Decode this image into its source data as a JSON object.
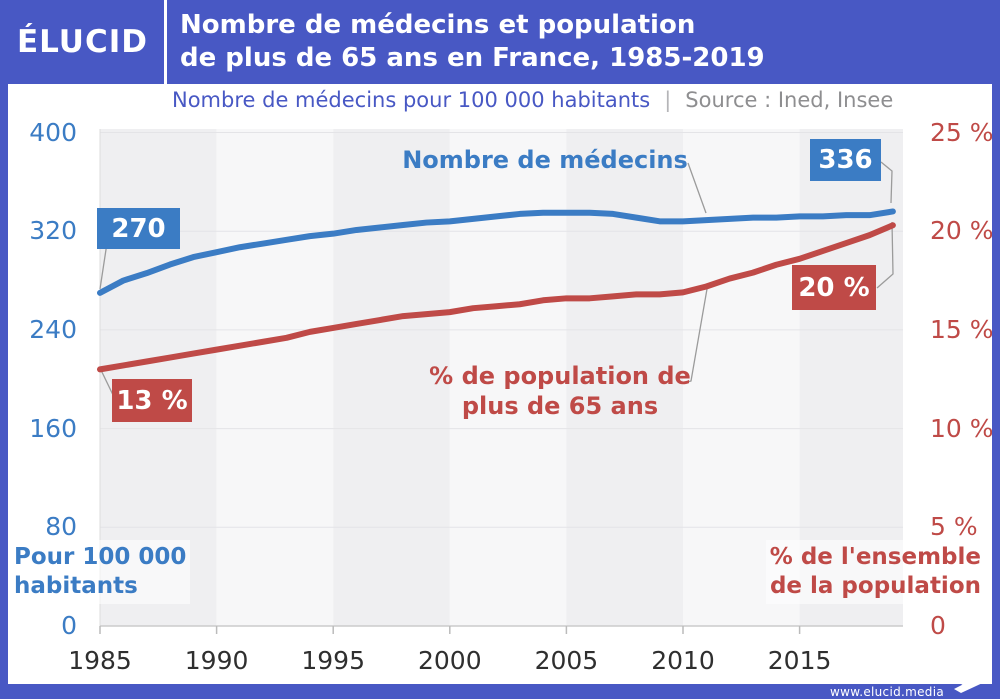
{
  "header": {
    "logo_text": "ÉLUCID",
    "title_line1": "Nombre de médecins et population",
    "title_line2": "de plus de 65 ans en France, 1985-2019"
  },
  "subtitle": {
    "measure_label": "Nombre de médecins pour 100 000 habitants",
    "separator": "|",
    "source_label": "Source : Ined, Insee"
  },
  "axis_captions": {
    "left_line1": "Pour 100 000",
    "left_line2": "habitants",
    "right_line1": "% de l'ensemble",
    "right_line2": "de la population"
  },
  "callouts": {
    "blue_start": "270",
    "blue_end": "336",
    "red_start": "13 %",
    "red_end": "20 %",
    "blue_series_label": "Nombre de médecins",
    "red_series_label_line1": "% de population de",
    "red_series_label_line2": "plus de 65 ans"
  },
  "footer": {
    "url_text": "www.elucid.media"
  },
  "colors": {
    "brand_blue": "#4858C4",
    "medecins_blue": "#3B7CC4",
    "population_red": "#BF4A47",
    "band_dark": "#EFEFF1",
    "band_light": "#F7F7F8",
    "gridline": "#E4E4E7",
    "axis_line": "#CCCCCC",
    "tick": "#BBBBBB",
    "connector": "#9B9B9B",
    "x_label": "#2F2F2F",
    "source_gray": "#8E8E90"
  },
  "chart_data": {
    "type": "line",
    "title": "Nombre de médecins et population de plus de 65 ans en France, 1985-2019",
    "subtitle": "Nombre de médecins pour 100 000 habitants",
    "source": "Source : Ined, Insee",
    "x": [
      1985,
      1986,
      1987,
      1988,
      1989,
      1990,
      1991,
      1992,
      1993,
      1994,
      1995,
      1996,
      1997,
      1998,
      1999,
      2000,
      2001,
      2002,
      2003,
      2004,
      2005,
      2006,
      2007,
      2008,
      2009,
      2010,
      2011,
      2012,
      2013,
      2014,
      2015,
      2016,
      2017,
      2018,
      2019
    ],
    "x_tick_years": [
      1985,
      1990,
      1995,
      2000,
      2005,
      2010,
      2015
    ],
    "x_tick_labels": [
      "1985",
      "1990",
      "1995",
      "2000",
      "2005",
      "2010",
      "2015"
    ],
    "left_axis": {
      "label": "Pour 100 000 habitants",
      "range": [
        0,
        400
      ],
      "tick_values": [
        0,
        80,
        160,
        240,
        320,
        400
      ],
      "tick_labels": [
        "0",
        "80",
        "160",
        "240",
        "320",
        "400"
      ]
    },
    "right_axis": {
      "label": "% de l'ensemble de la population",
      "range": [
        0,
        25
      ],
      "tick_values": [
        0,
        5,
        10,
        15,
        20,
        25
      ],
      "tick_labels": [
        "0",
        "5 %",
        "10 %",
        "15 %",
        "20 %",
        "25 %"
      ]
    },
    "grid": "horizontal-on",
    "background_bands": "alternating 5-year vertical bands",
    "legend_position": "inline-annotations",
    "series": [
      {
        "name": "Nombre de médecins",
        "axis": "left",
        "color": "#3B7CC4",
        "start_label": "270",
        "end_label": "336",
        "values": [
          270,
          280,
          286,
          293,
          299,
          303,
          307,
          310,
          313,
          316,
          318,
          321,
          323,
          325,
          327,
          328,
          330,
          332,
          334,
          335,
          335,
          335,
          334,
          331,
          328,
          328,
          329,
          330,
          331,
          331,
          332,
          332,
          333,
          333,
          336
        ]
      },
      {
        "name": "% de population de plus de 65 ans",
        "axis": "right",
        "color": "#BF4A47",
        "start_label": "13 %",
        "end_label": "20 %",
        "values": [
          13.0,
          13.2,
          13.4,
          13.6,
          13.8,
          14.0,
          14.2,
          14.4,
          14.6,
          14.9,
          15.1,
          15.3,
          15.5,
          15.7,
          15.8,
          15.9,
          16.1,
          16.2,
          16.3,
          16.5,
          16.6,
          16.6,
          16.7,
          16.8,
          16.8,
          16.9,
          17.2,
          17.6,
          17.9,
          18.3,
          18.6,
          19.0,
          19.4,
          19.8,
          20.3
        ]
      }
    ]
  }
}
